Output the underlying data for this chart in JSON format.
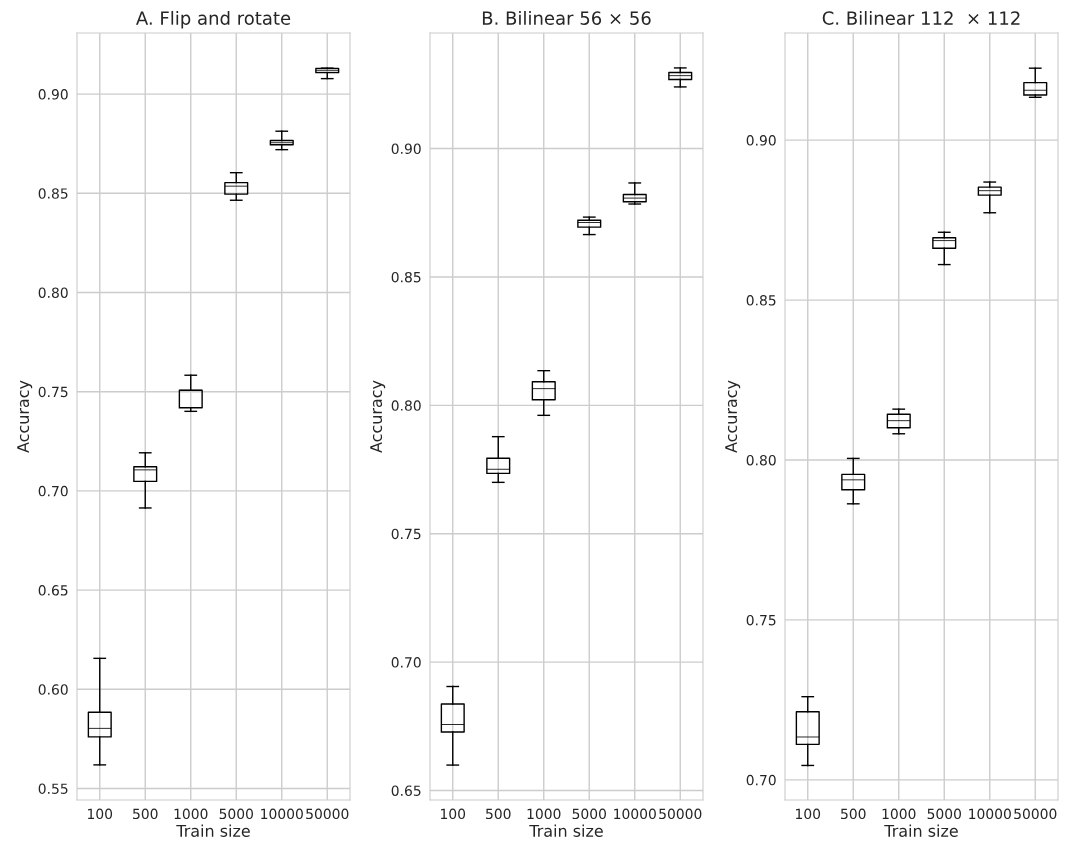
{
  "chart_data": [
    {
      "type": "box",
      "title": "A. Flip and rotate",
      "xlabel": "Train size",
      "ylabel": "Accuracy",
      "categories": [
        "100",
        "500",
        "1000",
        "5000",
        "10000",
        "50000"
      ],
      "grid": true,
      "ylim": [
        0.5442,
        0.9308
      ],
      "yticks": [
        {
          "value": 0.55,
          "label": "0.55"
        },
        {
          "value": 0.6,
          "label": "0.60"
        },
        {
          "value": 0.65,
          "label": "0.65"
        },
        {
          "value": 0.7,
          "label": "0.70"
        },
        {
          "value": 0.75,
          "label": "0.75"
        },
        {
          "value": 0.8,
          "label": "0.80"
        },
        {
          "value": 0.85,
          "label": "0.85"
        },
        {
          "value": 0.9,
          "label": "0.90"
        }
      ],
      "boxes": [
        {
          "low": 0.5619,
          "q1": 0.576,
          "median": 0.5803,
          "q3": 0.5884,
          "high": 0.6156
        },
        {
          "low": 0.6914,
          "q1": 0.7048,
          "median": 0.7106,
          "q3": 0.7122,
          "high": 0.7192
        },
        {
          "low": 0.7401,
          "q1": 0.7419,
          "median": 0.7507,
          "q3": 0.7507,
          "high": 0.7583
        },
        {
          "low": 0.8465,
          "q1": 0.8496,
          "median": 0.8536,
          "q3": 0.8554,
          "high": 0.8604
        },
        {
          "low": 0.872,
          "q1": 0.8745,
          "median": 0.8755,
          "q3": 0.8766,
          "high": 0.8813
        },
        {
          "low": 0.9078,
          "q1": 0.9108,
          "median": 0.9118,
          "q3": 0.9129,
          "high": 0.9131
        }
      ]
    },
    {
      "type": "box",
      "title": "B. Bilinear 56 × 56",
      "xlabel": "Train size",
      "ylabel": "Accuracy",
      "categories": [
        "100",
        "500",
        "1000",
        "5000",
        "10000",
        "50000"
      ],
      "grid": true,
      "ylim": [
        0.6463,
        0.945
      ],
      "yticks": [
        {
          "value": 0.65,
          "label": "0.65"
        },
        {
          "value": 0.7,
          "label": "0.70"
        },
        {
          "value": 0.75,
          "label": "0.75"
        },
        {
          "value": 0.8,
          "label": "0.80"
        },
        {
          "value": 0.85,
          "label": "0.85"
        },
        {
          "value": 0.9,
          "label": "0.90"
        }
      ],
      "boxes": [
        {
          "low": 0.6599,
          "q1": 0.6728,
          "median": 0.6757,
          "q3": 0.6837,
          "high": 0.6905
        },
        {
          "low": 0.77,
          "q1": 0.7735,
          "median": 0.7751,
          "q3": 0.7794,
          "high": 0.7878
        },
        {
          "low": 0.7961,
          "q1": 0.8022,
          "median": 0.8065,
          "q3": 0.8092,
          "high": 0.8135
        },
        {
          "low": 0.8665,
          "q1": 0.8694,
          "median": 0.8712,
          "q3": 0.8721,
          "high": 0.8733
        },
        {
          "low": 0.8784,
          "q1": 0.8793,
          "median": 0.8807,
          "q3": 0.8821,
          "high": 0.8866
        },
        {
          "low": 0.924,
          "q1": 0.9269,
          "median": 0.9284,
          "q3": 0.9296,
          "high": 0.9314
        }
      ]
    },
    {
      "type": "box",
      "title": "C. Bilinear 112  × 112",
      "xlabel": "Train size",
      "ylabel": "Accuracy",
      "categories": [
        "100",
        "500",
        "1000",
        "5000",
        "10000",
        "50000"
      ],
      "grid": true,
      "ylim": [
        0.6937,
        0.9335
      ],
      "yticks": [
        {
          "value": 0.7,
          "label": "0.70"
        },
        {
          "value": 0.75,
          "label": "0.75"
        },
        {
          "value": 0.8,
          "label": "0.80"
        },
        {
          "value": 0.85,
          "label": "0.85"
        },
        {
          "value": 0.9,
          "label": "0.90"
        }
      ],
      "boxes": [
        {
          "low": 0.7045,
          "q1": 0.7111,
          "median": 0.7134,
          "q3": 0.7213,
          "high": 0.726
        },
        {
          "low": 0.7863,
          "q1": 0.7907,
          "median": 0.7938,
          "q3": 0.7955,
          "high": 0.8005
        },
        {
          "low": 0.8082,
          "q1": 0.8101,
          "median": 0.8123,
          "q3": 0.8143,
          "high": 0.8159
        },
        {
          "low": 0.8611,
          "q1": 0.8662,
          "median": 0.8686,
          "q3": 0.8695,
          "high": 0.8712
        },
        {
          "low": 0.8773,
          "q1": 0.8828,
          "median": 0.8842,
          "q3": 0.8853,
          "high": 0.8869
        },
        {
          "low": 0.9134,
          "q1": 0.9141,
          "median": 0.9156,
          "q3": 0.918,
          "high": 0.9225
        }
      ]
    }
  ]
}
